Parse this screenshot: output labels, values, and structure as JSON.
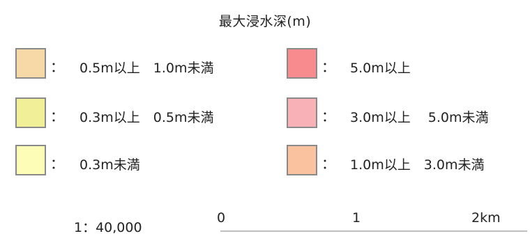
{
  "legend": {
    "title": "最大浸水深(m)",
    "separator": "：",
    "left_items": [
      {
        "color": "#f7d9a8",
        "range": "0.5m以上　1.0m未満"
      },
      {
        "color": "#f1ef98",
        "range": "0.3m以上　0.5m未満"
      },
      {
        "color": "#fdfdb8",
        "range": "0.3m未満"
      }
    ],
    "right_items": [
      {
        "color": "#f78b8e",
        "range": "5.0m以上"
      },
      {
        "color": "#f9b1b8",
        "range": "3.0m以上　 5.0m未満"
      },
      {
        "color": "#fbc2a0",
        "range": "1.0m以上　3.0m未満"
      }
    ]
  },
  "scale_bar": {
    "ratio": "1：40,000",
    "ticks": [
      "0",
      "1",
      "2km"
    ]
  }
}
